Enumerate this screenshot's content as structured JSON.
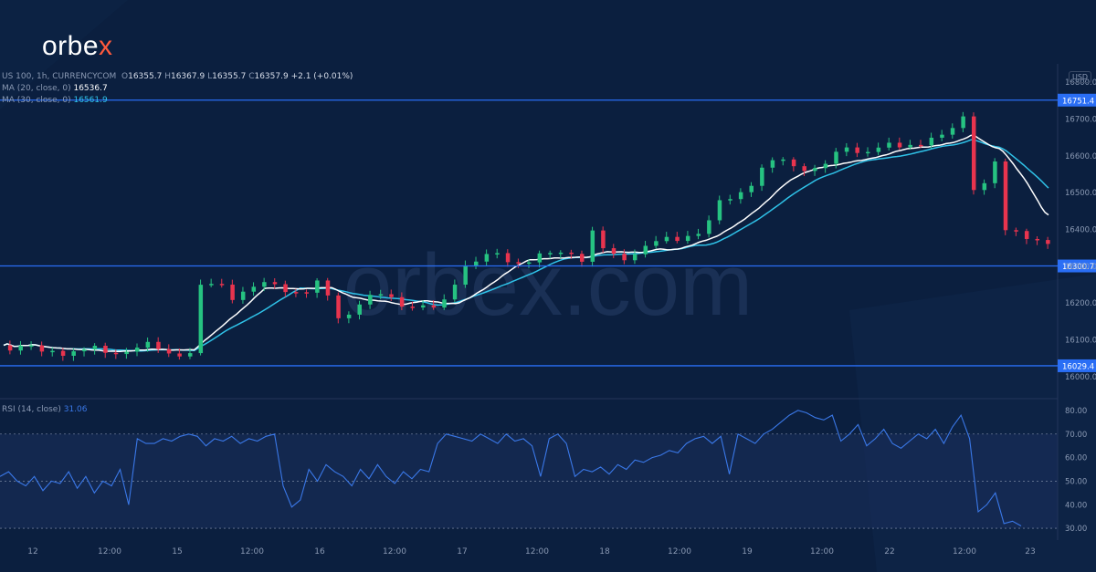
{
  "brand": {
    "logo_prefix": "orbe",
    "logo_x": "x",
    "watermark": "orbex.com"
  },
  "legend": {
    "instrument": "US 100, 1h, CURRENCYCOM",
    "o_label": "O",
    "o_value": "16355.7",
    "h_label": "H",
    "h_value": "16367.9",
    "l_label": "L",
    "l_value": "16355.7",
    "c_label": "C",
    "c_value": "16357.9",
    "change": "+2.1 (+0.01%)",
    "ma20_label": "MA (20, close, 0)",
    "ma20_value": "16536.7",
    "ma30_label": "MA (30, close, 0)",
    "ma30_value": "16561.9",
    "rsi_label": "RSI (14, close)",
    "rsi_value": "31.06"
  },
  "currency": "USD",
  "colors": {
    "background": "#0b1f3f",
    "up": "#26c281",
    "down": "#e8344e",
    "ma20": "#ffffff",
    "ma30": "#2fc2e8",
    "level_line": "#2a6ef5",
    "rsi_line": "#3a78e8"
  },
  "chart_data": [
    {
      "type": "candlestick",
      "title": "US 100, 1h, CURRENCYCOM",
      "ylabel": "USD",
      "ylim": [
        15940,
        16850
      ],
      "y_ticks": [
        "16800.0",
        "16700.0",
        "16600.0",
        "16500.0",
        "16400.0",
        "16300.0",
        "16200.0",
        "16100.0",
        "16000.0"
      ],
      "x_ticks": [
        "12",
        "12:00",
        "15",
        "12:00",
        "16",
        "12:00",
        "17",
        "12:00",
        "18",
        "12:00",
        "19",
        "12:00",
        "22",
        "12:00",
        "23"
      ],
      "close_path": [
        [
          0,
          16080
        ],
        [
          8,
          16090
        ],
        [
          12,
          16060
        ],
        [
          20,
          16070
        ],
        [
          25,
          16080
        ],
        [
          30,
          16060
        ],
        [
          35,
          16070
        ],
        [
          40,
          16090
        ],
        [
          48,
          16060
        ],
        [
          54,
          16070
        ],
        [
          55,
          16240
        ],
        [
          62,
          16250
        ],
        [
          66,
          16220
        ],
        [
          70,
          16240
        ],
        [
          74,
          16250
        ],
        [
          80,
          16240
        ],
        [
          86,
          16230
        ],
        [
          92,
          16260
        ],
        [
          94,
          16170
        ],
        [
          98,
          16150
        ],
        [
          100,
          16200
        ],
        [
          104,
          16210
        ],
        [
          108,
          16220
        ],
        [
          114,
          16200
        ],
        [
          120,
          16190
        ],
        [
          124,
          16180
        ],
        [
          128,
          16220
        ],
        [
          130,
          16300
        ],
        [
          136,
          16320
        ],
        [
          140,
          16330
        ],
        [
          146,
          16310
        ],
        [
          150,
          16320
        ],
        [
          156,
          16330
        ],
        [
          162,
          16340
        ],
        [
          164,
          16300
        ],
        [
          168,
          16390
        ],
        [
          172,
          16330
        ],
        [
          176,
          16320
        ],
        [
          180,
          16340
        ],
        [
          184,
          16360
        ],
        [
          190,
          16370
        ],
        [
          196,
          16390
        ],
        [
          200,
          16400
        ],
        [
          204,
          16470
        ],
        [
          208,
          16490
        ],
        [
          212,
          16520
        ],
        [
          216,
          16560
        ],
        [
          220,
          16590
        ],
        [
          224,
          16580
        ],
        [
          228,
          16570
        ],
        [
          232,
          16560
        ],
        [
          236,
          16590
        ],
        [
          238,
          16610
        ],
        [
          240,
          16630
        ],
        [
          244,
          16610
        ],
        [
          250,
          16620
        ],
        [
          256,
          16630
        ],
        [
          262,
          16640
        ],
        [
          268,
          16650
        ],
        [
          272,
          16700
        ],
        [
          274,
          16720
        ],
        [
          276,
          16520
        ],
        [
          278,
          16500
        ],
        [
          282,
          16580
        ],
        [
          285,
          16390
        ],
        [
          288,
          16400
        ],
        [
          292,
          16380
        ],
        [
          296,
          16360
        ]
      ],
      "levels": [
        {
          "label": "16751.4",
          "value": 16751.4
        },
        {
          "label": "16300.7",
          "value": 16300.7
        },
        {
          "label": "16029.4",
          "value": 16029.4
        }
      ],
      "series": [
        {
          "name": "MA (20, close, 0)",
          "last": 16536.7
        },
        {
          "name": "MA (30, close, 0)",
          "last": 16561.9
        }
      ]
    },
    {
      "type": "line",
      "title": "RSI (14, close)",
      "ylim": [
        25,
        85
      ],
      "y_ticks": [
        "80.00",
        "70.00",
        "60.00",
        "50.00",
        "40.00",
        "30.00"
      ],
      "reference_lines": [
        70,
        50,
        30
      ],
      "values": [
        52,
        54,
        50,
        48,
        52,
        46,
        50,
        49,
        54,
        47,
        52,
        45,
        50,
        48,
        55,
        40,
        68,
        66,
        66,
        68,
        67,
        69,
        70,
        69,
        65,
        68,
        67,
        69,
        66,
        68,
        67,
        69,
        70,
        48,
        39,
        42,
        55,
        50,
        57,
        54,
        52,
        48,
        55,
        51,
        57,
        52,
        49,
        54,
        51,
        55,
        54,
        66,
        70,
        69,
        68,
        67,
        70,
        68,
        66,
        70,
        67,
        68,
        65,
        52,
        68,
        70,
        66,
        52,
        55,
        54,
        56,
        53,
        57,
        55,
        59,
        58,
        60,
        61,
        63,
        62,
        66,
        68,
        69,
        66,
        69,
        53,
        70,
        68,
        66,
        70,
        72,
        75,
        78,
        80,
        79,
        77,
        76,
        78,
        67,
        70,
        74,
        65,
        68,
        72,
        66,
        64,
        67,
        70,
        68,
        72,
        66,
        73,
        78,
        68,
        37,
        40,
        45,
        32,
        33,
        31
      ],
      "last": 31.06
    }
  ]
}
